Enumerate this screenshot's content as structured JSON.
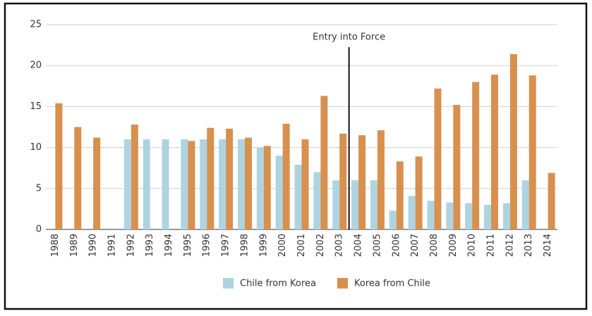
{
  "chart_data": {
    "type": "bar",
    "categories": [
      "1988",
      "1989",
      "1990",
      "1991",
      "1992",
      "1993",
      "1994",
      "1995",
      "1996",
      "1997",
      "1998",
      "1999",
      "2000",
      "2001",
      "2002",
      "2003",
      "2004",
      "2005",
      "2006",
      "2007",
      "2008",
      "2009",
      "2010",
      "2011",
      "2012",
      "2013",
      "2014"
    ],
    "series": [
      {
        "name": "Chile from Korea",
        "color": "#aed4e1",
        "values": [
          null,
          null,
          null,
          null,
          11,
          11,
          11,
          11,
          11,
          11,
          11,
          10,
          9,
          7.9,
          7,
          6,
          6,
          6,
          2.3,
          4.1,
          3.5,
          3.3,
          3.2,
          3,
          3.2,
          6,
          null
        ]
      },
      {
        "name": "Korea from Chile",
        "color": "#d8904f",
        "values": [
          15.4,
          12.5,
          11.2,
          null,
          12.8,
          null,
          null,
          10.8,
          12.4,
          12.3,
          11.2,
          10.2,
          12.9,
          11,
          16.3,
          11.7,
          11.5,
          12.1,
          8.3,
          8.9,
          17.2,
          15.2,
          18,
          18.9,
          21.4,
          18.8,
          6.9
        ]
      }
    ],
    "annotation": "Entry into Force",
    "ylim": [
      0,
      25
    ],
    "yticks": [
      0,
      5,
      10,
      15,
      20,
      25
    ],
    "grid": true,
    "legend": "bottom"
  }
}
